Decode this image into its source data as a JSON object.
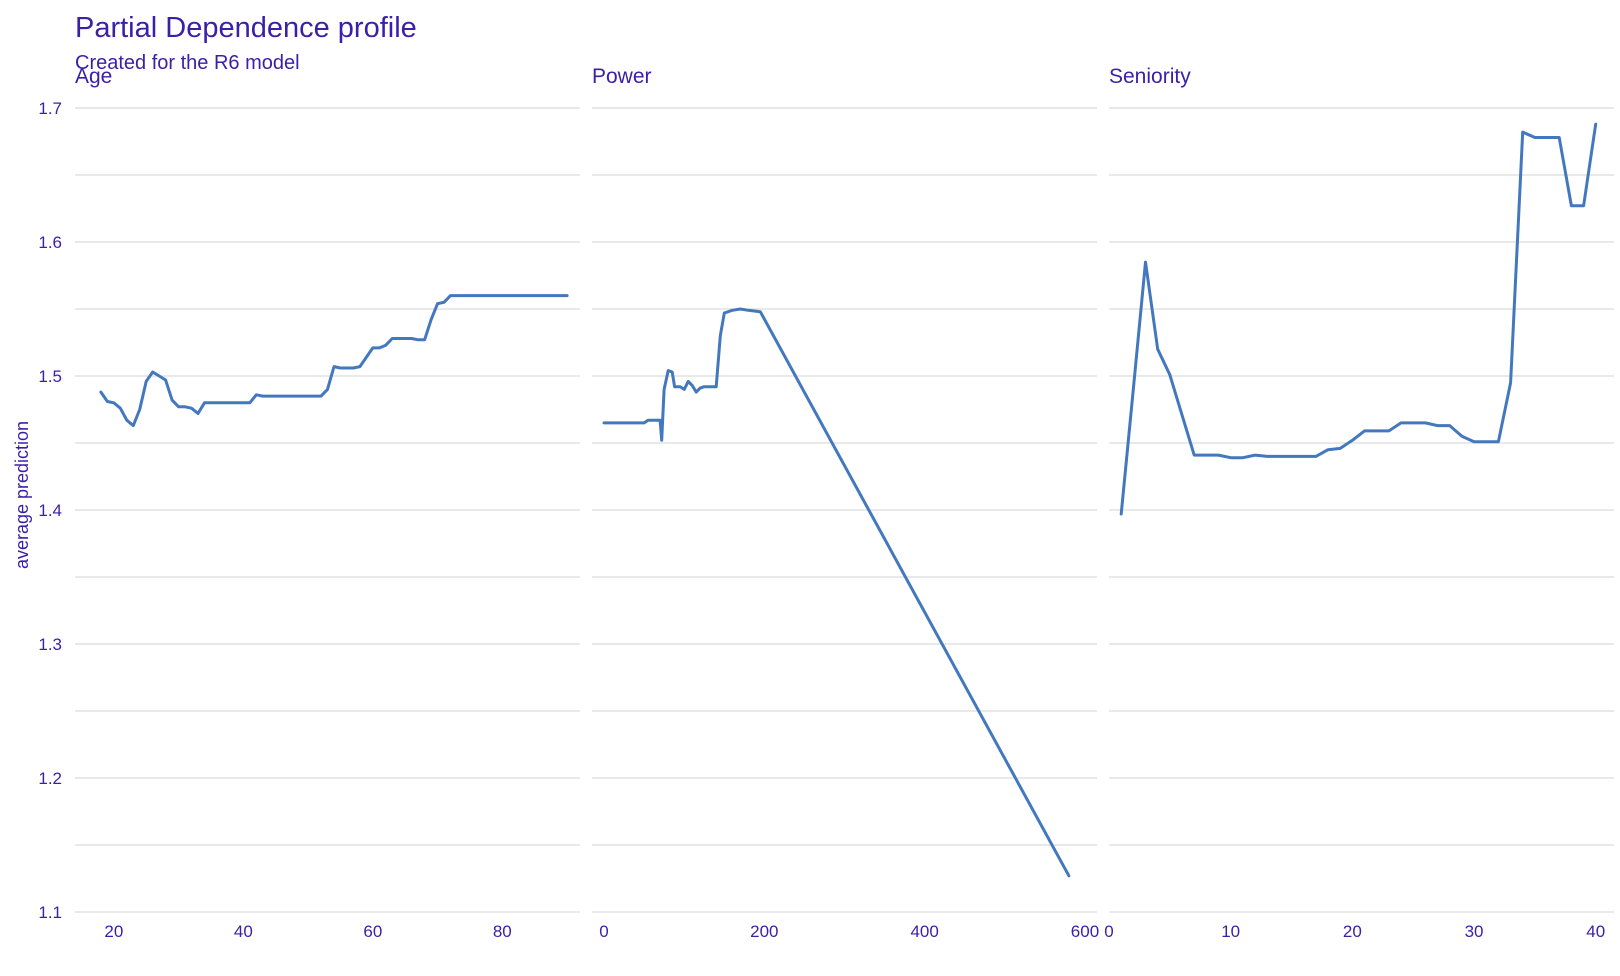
{
  "title": "Partial Dependence profile",
  "subtitle": "Created for the R6 model",
  "colors": {
    "text": "#3a1fa8",
    "line": "#4378bf",
    "grid": "#dcdcdc",
    "background": "#ffffff"
  },
  "chart_data": {
    "type": "line",
    "ylabel": "average prediction",
    "ylim": [
      1.1,
      1.7
    ],
    "yticks": [
      1.1,
      1.2,
      1.3,
      1.4,
      1.5,
      1.6,
      1.7
    ],
    "grid": true,
    "legend": "none",
    "panels": [
      {
        "name": "Age",
        "xlim": [
          14,
          92
        ],
        "xticks": [
          20,
          40,
          60,
          80
        ],
        "x": [
          18,
          19,
          20,
          21,
          22,
          23,
          24,
          25,
          26,
          27,
          28,
          29,
          30,
          31,
          32,
          33,
          34,
          35,
          40,
          41,
          42,
          43,
          45,
          50,
          52,
          53,
          54,
          55,
          57,
          58,
          60,
          61,
          62,
          63,
          64,
          65,
          66,
          67,
          68,
          69,
          70,
          71,
          72,
          75,
          80,
          85,
          90
        ],
        "y": [
          1.488,
          1.481,
          1.48,
          1.476,
          1.467,
          1.463,
          1.475,
          1.496,
          1.503,
          1.5,
          1.497,
          1.482,
          1.477,
          1.477,
          1.476,
          1.472,
          1.48,
          1.48,
          1.48,
          1.48,
          1.486,
          1.485,
          1.485,
          1.485,
          1.485,
          1.49,
          1.507,
          1.506,
          1.506,
          1.507,
          1.521,
          1.521,
          1.523,
          1.528,
          1.528,
          1.528,
          1.528,
          1.527,
          1.527,
          1.542,
          1.554,
          1.555,
          1.56,
          1.56,
          1.56,
          1.56,
          1.56
        ]
      },
      {
        "name": "Power",
        "xlim": [
          -15,
          615
        ],
        "xticks": [
          0,
          200,
          400,
          600
        ],
        "x": [
          0,
          20,
          40,
          50,
          55,
          60,
          70,
          72,
          75,
          80,
          85,
          88,
          90,
          95,
          100,
          105,
          110,
          115,
          120,
          125,
          130,
          140,
          145,
          150,
          160,
          170,
          180,
          195,
          580
        ],
        "y": [
          1.465,
          1.465,
          1.465,
          1.465,
          1.467,
          1.467,
          1.467,
          1.452,
          1.49,
          1.504,
          1.503,
          1.492,
          1.492,
          1.492,
          1.49,
          1.496,
          1.493,
          1.488,
          1.491,
          1.492,
          1.492,
          1.492,
          1.53,
          1.547,
          1.549,
          1.55,
          1.549,
          1.548,
          1.127
        ]
      },
      {
        "name": "Seniority",
        "xlim": [
          0,
          41.5
        ],
        "xticks": [
          0,
          10,
          20,
          30,
          40
        ],
        "x": [
          1,
          2,
          3,
          4,
          5,
          6,
          7,
          8,
          9,
          10,
          11,
          12,
          13,
          14,
          15,
          16,
          17,
          18,
          19,
          20,
          21,
          22,
          23,
          24,
          25,
          26,
          27,
          28,
          29,
          30,
          31,
          32,
          33,
          34,
          35,
          36,
          37,
          38,
          39,
          40
        ],
        "y": [
          1.397,
          1.49,
          1.585,
          1.52,
          1.501,
          1.471,
          1.441,
          1.441,
          1.441,
          1.439,
          1.439,
          1.441,
          1.44,
          1.44,
          1.44,
          1.44,
          1.44,
          1.445,
          1.446,
          1.452,
          1.459,
          1.459,
          1.459,
          1.465,
          1.465,
          1.465,
          1.463,
          1.463,
          1.455,
          1.451,
          1.451,
          1.451,
          1.495,
          1.682,
          1.678,
          1.678,
          1.678,
          1.627,
          1.627,
          1.688
        ]
      }
    ]
  }
}
